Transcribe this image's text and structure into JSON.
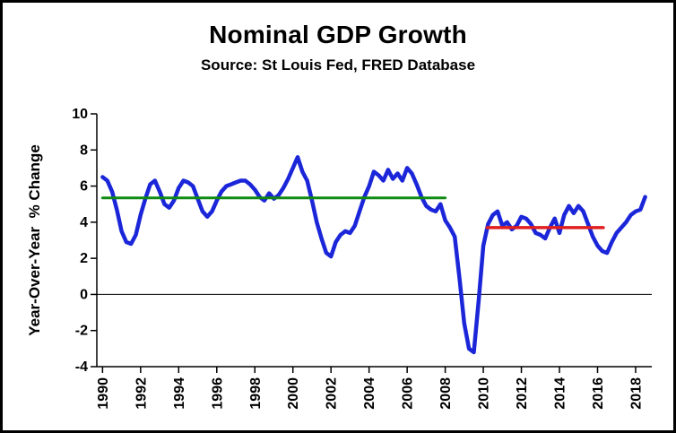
{
  "title": "Nominal GDP Growth",
  "subtitle": "Source: St Louis Fed, FRED Database",
  "chart_data": {
    "type": "line",
    "title": "Nominal GDP Growth",
    "subtitle": "Source: St Louis Fed, FRED Database",
    "xlabel": "",
    "ylabel": "Year-Over-Year  % Change",
    "xlim": [
      1989.7,
      2018.85
    ],
    "ylim": [
      -4,
      10
    ],
    "x_ticks": [
      1990,
      1992,
      1994,
      1996,
      1998,
      2000,
      2002,
      2004,
      2006,
      2008,
      2010,
      2012,
      2014,
      2016,
      2018
    ],
    "y_ticks": [
      10,
      8,
      6,
      4,
      2,
      0,
      -2,
      -4
    ],
    "grid": false,
    "legend": "none",
    "zero_line": {
      "y": 0,
      "color": "#000000",
      "width": 1
    },
    "axis_color": "#000000",
    "series": [
      {
        "name": "nominal-gdp-yoy",
        "color": "#1b26d9",
        "width": 4.5,
        "x_start": 1990.0,
        "x_step": 0.25,
        "values": [
          6.5,
          6.3,
          5.7,
          4.7,
          3.5,
          2.9,
          2.8,
          3.3,
          4.4,
          5.3,
          6.1,
          6.3,
          5.7,
          5.0,
          4.8,
          5.2,
          5.9,
          6.3,
          6.2,
          6.0,
          5.3,
          4.6,
          4.3,
          4.6,
          5.2,
          5.7,
          6.0,
          6.1,
          6.2,
          6.3,
          6.3,
          6.1,
          5.8,
          5.4,
          5.2,
          5.6,
          5.3,
          5.5,
          5.9,
          6.4,
          7.0,
          7.6,
          6.8,
          6.3,
          5.2,
          4.0,
          3.1,
          2.3,
          2.1,
          2.9,
          3.3,
          3.5,
          3.4,
          3.8,
          4.6,
          5.4,
          6.0,
          6.8,
          6.6,
          6.3,
          6.9,
          6.4,
          6.7,
          6.3,
          7.0,
          6.7,
          6.1,
          5.4,
          4.9,
          4.7,
          4.6,
          5.0,
          4.1,
          3.7,
          3.2,
          0.9,
          -1.6,
          -3.0,
          -3.2,
          -0.4,
          2.7,
          3.9,
          4.4,
          4.6,
          3.8,
          4.0,
          3.6,
          3.8,
          4.3,
          4.2,
          3.9,
          3.4,
          3.3,
          3.1,
          3.7,
          4.2,
          3.4,
          4.4,
          4.9,
          4.5,
          4.9,
          4.6,
          3.9,
          3.2,
          2.7,
          2.4,
          2.3,
          2.9,
          3.4,
          3.7,
          4.0,
          4.4,
          4.6,
          4.7,
          5.4
        ]
      },
      {
        "name": "green-reference-line",
        "color": "#0e8a12",
        "width": 3,
        "x": [
          1990.0,
          2008.0
        ],
        "values": [
          5.35,
          5.35
        ]
      },
      {
        "name": "red-reference-line",
        "color": "#e02020",
        "width": 3.5,
        "x": [
          2010.2,
          2016.3
        ],
        "values": [
          3.7,
          3.7
        ]
      }
    ]
  }
}
